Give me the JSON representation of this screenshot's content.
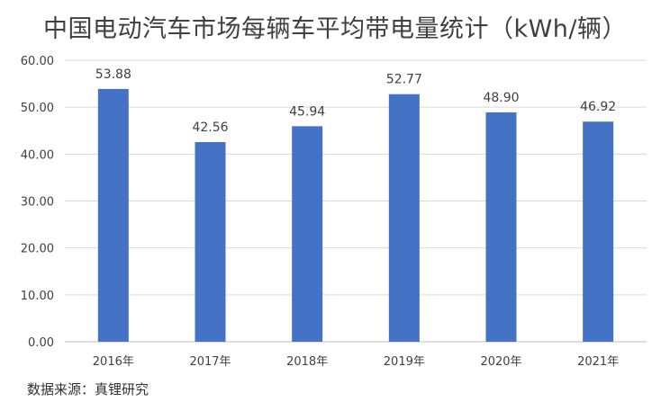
{
  "chart_data": {
    "type": "bar",
    "title": "中国电动汽车市场每辆车平均带电量统计（kWh/辆）",
    "categories": [
      "2016年",
      "2017年",
      "2018年",
      "2019年",
      "2020年",
      "2021年"
    ],
    "values": [
      53.88,
      42.56,
      45.94,
      52.77,
      48.9,
      46.92
    ],
    "data_labels": [
      "53.88",
      "42.56",
      "45.94",
      "52.77",
      "48.90",
      "46.92"
    ],
    "yticks": [
      "0.00",
      "10.00",
      "20.00",
      "30.00",
      "40.00",
      "50.00",
      "60.00"
    ],
    "ylim": [
      0,
      60
    ],
    "grid": true,
    "legend": "none",
    "bar_color": "#4472C4"
  },
  "footer": {
    "source": "数据来源：真锂研究"
  }
}
